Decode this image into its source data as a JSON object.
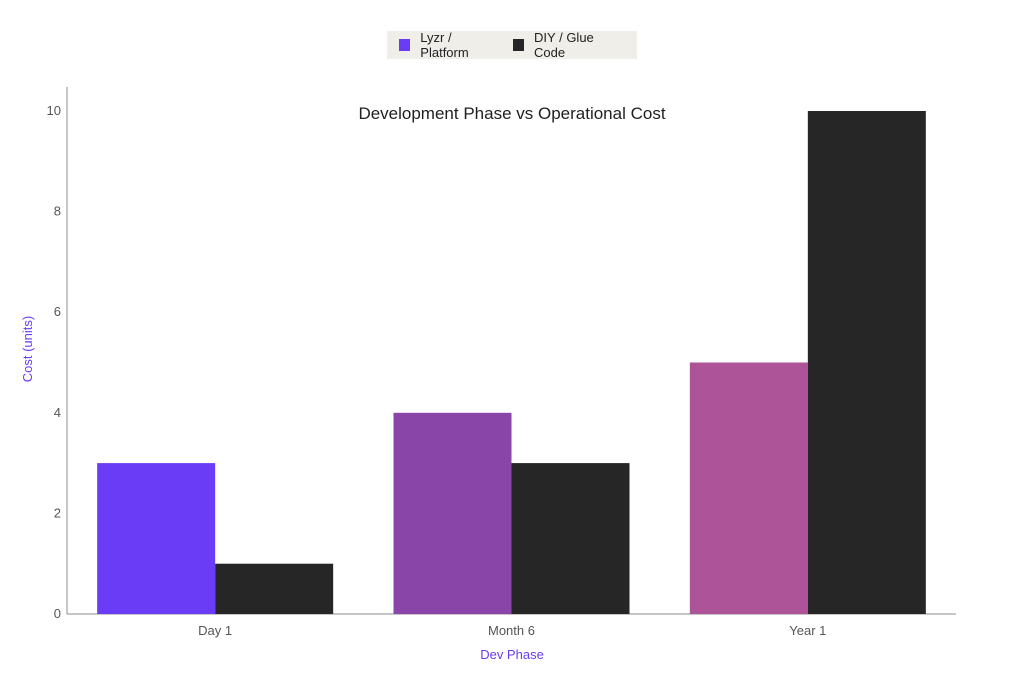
{
  "chart_data": {
    "type": "bar",
    "title": "Development Phase vs Operational Cost",
    "xlabel": "Dev Phase",
    "ylabel": "Cost (units)",
    "categories": [
      "Day 1",
      "Month 6",
      "Year 1"
    ],
    "series": [
      {
        "name": "Lyzr / Platform",
        "values": [
          3,
          4,
          5
        ],
        "color": "#6a3cf5",
        "bar_colors": [
          "#6a3cf5",
          "#8a45a8",
          "#ad5398"
        ]
      },
      {
        "name": "DIY / Glue Code",
        "values": [
          1,
          3,
          10
        ],
        "color": "#262626",
        "bar_colors": [
          "#262626",
          "#262626",
          "#262626"
        ]
      }
    ],
    "ylim": [
      0,
      10
    ],
    "yticks": [
      0,
      2,
      4,
      6,
      8,
      10
    ],
    "legend_position": "top-center",
    "grid": false,
    "axis_title_color": "#6a3cf5",
    "axis_line_color": "#8c8c8c"
  }
}
